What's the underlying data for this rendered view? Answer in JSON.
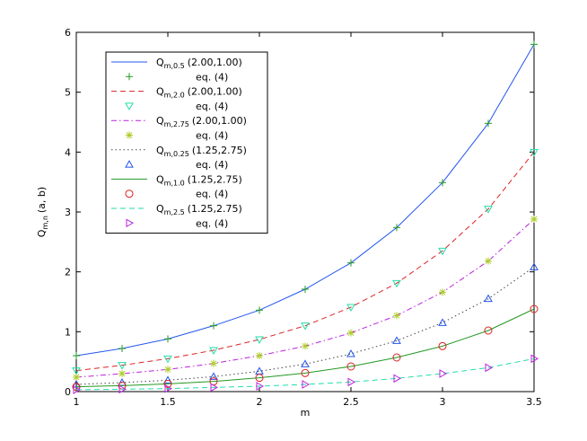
{
  "chart_data": {
    "type": "line",
    "xlabel": "m",
    "ylabel": {
      "main": "Q",
      "sub": "m,n",
      "rest": "(a, b)"
    },
    "xlim": [
      1,
      3.5
    ],
    "ylim": [
      0,
      6
    ],
    "xticks": [
      "1",
      "1.5",
      "2",
      "2.5",
      "3",
      "3.5"
    ],
    "yticks": [
      "0",
      "1",
      "2",
      "3",
      "4",
      "5",
      "6"
    ],
    "grid": false,
    "legend_position": "top-left",
    "series": [
      {
        "name": "Q",
        "sub": "m,0.5",
        "args": "(2.00,1.00)",
        "color": "#2255ee",
        "style": "solid",
        "x": [
          1,
          1.25,
          1.5,
          1.75,
          2,
          2.25,
          2.5,
          2.75,
          3,
          3.25,
          3.5
        ],
        "values": [
          0.6,
          0.72,
          0.88,
          1.1,
          1.36,
          1.71,
          2.15,
          2.74,
          3.49,
          4.48,
          5.8
        ],
        "marker": {
          "label": "eq. (4)",
          "shape": "plus",
          "color": "#229922"
        }
      },
      {
        "name": "Q",
        "sub": "m,2.0",
        "args": "(2.00,1.00)",
        "color": "#dd2222",
        "style": "dashed",
        "x": [
          1,
          1.25,
          1.5,
          1.75,
          2,
          2.25,
          2.5,
          2.75,
          3,
          3.25,
          3.5
        ],
        "values": [
          0.35,
          0.44,
          0.55,
          0.69,
          0.87,
          1.1,
          1.41,
          1.81,
          2.35,
          3.05,
          4.0
        ],
        "marker": {
          "label": "eq. (4)",
          "shape": "triangle-down",
          "color": "#22ddaa"
        }
      },
      {
        "name": "Q",
        "sub": "m,2.75",
        "args": "(2.00,1.00)",
        "color": "#bb22dd",
        "style": "dashdot",
        "x": [
          1,
          1.25,
          1.5,
          1.75,
          2,
          2.25,
          2.5,
          2.75,
          3,
          3.25,
          3.5
        ],
        "values": [
          0.24,
          0.3,
          0.37,
          0.47,
          0.6,
          0.76,
          0.98,
          1.27,
          1.66,
          2.18,
          2.88
        ],
        "marker": {
          "label": "eq. (4)",
          "shape": "asterisk",
          "color": "#aacc22"
        }
      },
      {
        "name": "Q",
        "sub": "m,0.25",
        "args": "(1.25,2.75)",
        "color": "#444444",
        "style": "dotted",
        "x": [
          1,
          1.25,
          1.5,
          1.75,
          2,
          2.25,
          2.5,
          2.75,
          3,
          3.25,
          3.5
        ],
        "values": [
          0.12,
          0.15,
          0.19,
          0.25,
          0.34,
          0.46,
          0.63,
          0.85,
          1.15,
          1.55,
          2.08
        ],
        "marker": {
          "label": "eq. (4)",
          "shape": "triangle-up",
          "color": "#2255ee"
        }
      },
      {
        "name": "Q",
        "sub": "m,1.0",
        "args": "(1.25,2.75)",
        "color": "#229922",
        "style": "solid",
        "x": [
          1,
          1.25,
          1.5,
          1.75,
          2,
          2.25,
          2.5,
          2.75,
          3,
          3.25,
          3.5
        ],
        "values": [
          0.08,
          0.1,
          0.13,
          0.17,
          0.23,
          0.31,
          0.42,
          0.57,
          0.76,
          1.02,
          1.38
        ],
        "marker": {
          "label": "eq. (4)",
          "shape": "circle",
          "color": "#dd2222"
        }
      },
      {
        "name": "Q",
        "sub": "m,2.5",
        "args": "(1.25,2.75)",
        "color": "#22ddaa",
        "style": "dashed",
        "x": [
          1,
          1.25,
          1.5,
          1.75,
          2,
          2.25,
          2.5,
          2.75,
          3,
          3.25,
          3.5
        ],
        "values": [
          0.03,
          0.04,
          0.05,
          0.07,
          0.09,
          0.12,
          0.16,
          0.22,
          0.3,
          0.4,
          0.55
        ],
        "marker": {
          "label": "eq. (4)",
          "shape": "triangle-right",
          "color": "#bb22dd"
        }
      }
    ]
  }
}
